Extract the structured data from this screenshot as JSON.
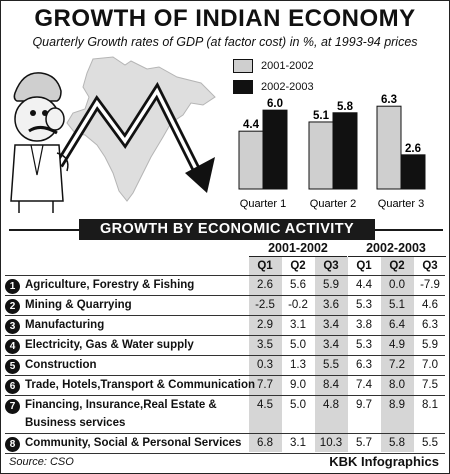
{
  "header": {
    "title": "GROWTH OF INDIAN ECONOMY",
    "subtitle": "Quarterly Growth rates of GDP (at factor cost) in %, at 1993-94 prices"
  },
  "chart_data": [
    {
      "type": "bar",
      "categories": [
        "Quarter 1",
        "Quarter 2",
        "Quarter 3"
      ],
      "series": [
        {
          "name": "2001-2002",
          "values": [
            4.4,
            5.1,
            6.3
          ]
        },
        {
          "name": "2002-2003",
          "values": [
            6.0,
            5.8,
            2.6
          ]
        }
      ],
      "value_labels": [
        [
          "4.4",
          "5.1",
          "6.3"
        ],
        [
          "6.0",
          "5.8",
          "2.6"
        ]
      ],
      "legend_position": "top",
      "grid": false,
      "ylim": [
        0,
        7
      ],
      "colors": {
        "2001-2002": "#cfcfcf",
        "2002-2003": "#111111"
      }
    },
    {
      "type": "table",
      "title": "GROWTH BY ECONOMIC ACTIVITY",
      "periods": [
        "2001-2002",
        "2002-2003"
      ],
      "quarters": [
        "Q1",
        "Q2",
        "Q3"
      ],
      "rows": [
        {
          "num": "1",
          "label": "Agriculture, Forestry & Fishing",
          "label2": "",
          "values": [
            "2.6",
            "5.6",
            "5.9",
            "4.4",
            "0.0",
            "-7.9"
          ]
        },
        {
          "num": "2",
          "label": "Mining & Quarrying",
          "label2": "",
          "values": [
            "-2.5",
            "-0.2",
            "3.6",
            "5.3",
            "5.1",
            "4.6"
          ]
        },
        {
          "num": "3",
          "label": "Manufacturing",
          "label2": "",
          "values": [
            "2.9",
            "3.1",
            "3.4",
            "3.8",
            "6.4",
            "6.3"
          ]
        },
        {
          "num": "4",
          "label": "Electricity, Gas & Water supply",
          "label2": "",
          "values": [
            "3.5",
            "5.0",
            "3.4",
            "5.3",
            "4.9",
            "5.9"
          ]
        },
        {
          "num": "5",
          "label": "Construction",
          "label2": "",
          "values": [
            "0.3",
            "1.3",
            "5.5",
            "6.3",
            "7.2",
            "7.0"
          ]
        },
        {
          "num": "6",
          "label": "Trade, Hotels,Transport & Communication",
          "label2": "",
          "values": [
            "7.7",
            "9.0",
            "8.4",
            "7.4",
            "8.0",
            "7.5"
          ]
        },
        {
          "num": "7",
          "label": "Financing, Insurance,Real Estate &",
          "label2": "Business services",
          "values": [
            "4.5",
            "5.0",
            "4.8",
            "9.7",
            "8.9",
            "8.1"
          ]
        },
        {
          "num": "8",
          "label": "Community, Social & Personal Services",
          "label2": "",
          "values": [
            "6.8",
            "3.1",
            "10.3",
            "5.7",
            "5.8",
            "5.5"
          ]
        }
      ]
    }
  ],
  "footer": {
    "source": "Source: CSO",
    "credit": "KBK Infographics"
  },
  "illustration": {
    "figure_icon": "cartoon-man-icon",
    "map_icon": "india-map-icon",
    "arrow_icon": "zigzag-arrow-icon"
  }
}
